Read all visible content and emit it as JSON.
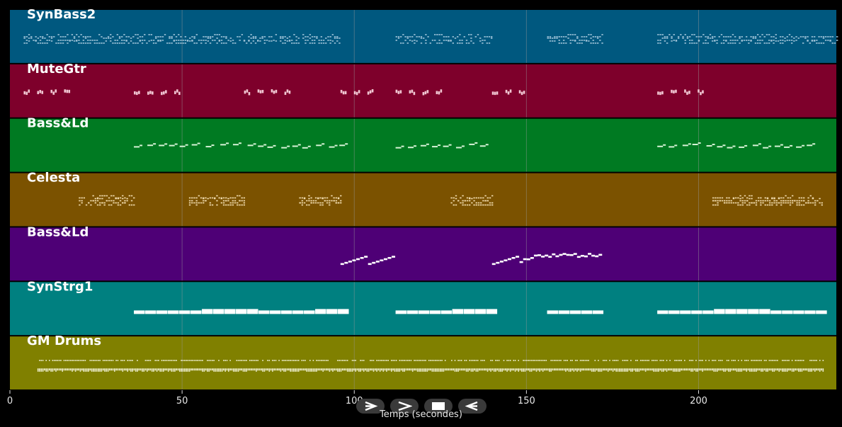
{
  "player": {
    "tracks": [
      {
        "name": "SynBass2",
        "color": "#00587f",
        "note_color": "#9fc3d8",
        "style": "dense2",
        "segments": [
          [
            4,
            96
          ],
          [
            112,
            140
          ],
          [
            156,
            172
          ],
          [
            188,
            240
          ]
        ]
      },
      {
        "name": "MuteGtr",
        "color": "#7e002b",
        "note_color": "#f0c6d2",
        "style": "groups",
        "segments": [
          [
            4,
            18
          ],
          [
            36,
            51
          ],
          [
            68,
            82
          ],
          [
            96,
            106
          ],
          [
            112,
            126
          ],
          [
            140,
            150
          ],
          [
            188,
            202
          ]
        ]
      },
      {
        "name": "Bass&Ld",
        "color": "#007a22",
        "note_color": "#d6f2d6",
        "style": "sparse",
        "segments": [
          [
            36,
            96
          ],
          [
            112,
            140
          ],
          [
            188,
            233
          ]
        ]
      },
      {
        "name": "Celesta",
        "color": "#7b5200",
        "note_color": "#f2dcb0",
        "style": "dense3",
        "segments": [
          [
            20,
            36
          ],
          [
            52,
            68
          ],
          [
            84,
            96
          ],
          [
            128,
            140
          ],
          [
            204,
            236
          ]
        ]
      },
      {
        "name": "Bass&Ld",
        "color": "#4e0076",
        "note_color": "#ffffff",
        "style": "rise",
        "segments": [
          [
            96,
            104
          ],
          [
            104,
            112
          ],
          [
            140,
            148
          ],
          [
            148,
            172
          ]
        ]
      },
      {
        "name": "SynStrg1",
        "color": "#008080",
        "note_color": "#ffffff",
        "style": "bars",
        "segments": [
          [
            36,
            96
          ],
          [
            112,
            140
          ],
          [
            156,
            172
          ],
          [
            188,
            236
          ]
        ]
      },
      {
        "name": "GM Drums",
        "color": "#808000",
        "note_color": "#f5f5dc",
        "style": "drums",
        "segments": [
          [
            8,
            236
          ]
        ]
      }
    ],
    "axis": {
      "ticks": [
        0,
        50,
        100,
        150,
        200
      ],
      "tick_labels": [
        "0",
        "50",
        "100",
        "150",
        "200"
      ],
      "max": 240,
      "label": "Temps (secondes)"
    },
    "controls": [
      {
        "name": "play-icon",
        "glyph": "play"
      },
      {
        "name": "forward-icon",
        "glyph": "forward"
      },
      {
        "name": "stop-icon",
        "glyph": "stop"
      },
      {
        "name": "back-icon",
        "glyph": "back"
      }
    ],
    "grid_color": "#9a9a9a"
  }
}
